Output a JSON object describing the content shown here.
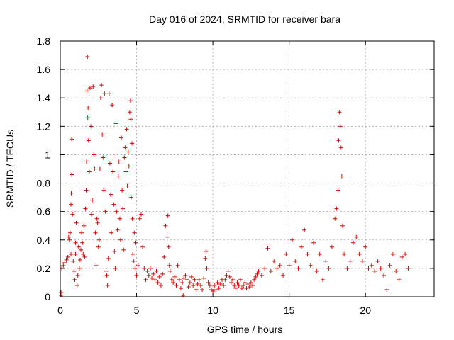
{
  "chart_data": {
    "type": "scatter",
    "title": "Day 016 of 2024, SRMTID for receiver bara",
    "xlabel": "GPS time / hours",
    "ylabel": "SRMTID / TECUs",
    "xlim": [
      0,
      24.5
    ],
    "ylim": [
      0,
      1.8
    ],
    "xticks": [
      0,
      5,
      10,
      15,
      20
    ],
    "xtick_labels": [
      "0",
      "5",
      "10",
      "15",
      "20"
    ],
    "yticks": [
      0,
      0.2,
      0.4,
      0.6,
      0.8,
      1.0,
      1.2,
      1.4,
      1.6,
      1.8
    ],
    "ytick_labels": [
      "0",
      "0.2",
      "0.4",
      "0.6",
      "0.8",
      "1",
      "1.2",
      "1.4",
      "1.6",
      "1.8"
    ],
    "grid": true,
    "marker": "+",
    "color": "#e00000",
    "series": [
      {
        "name": "SRMTID",
        "points": [
          [
            0.05,
            0.01
          ],
          [
            0.05,
            0.03
          ],
          [
            0.1,
            0.2
          ],
          [
            0.2,
            0.22
          ],
          [
            0.3,
            0.24
          ],
          [
            0.4,
            0.26
          ],
          [
            0.5,
            0.28
          ],
          [
            0.55,
            0.42
          ],
          [
            0.6,
            0.4
          ],
          [
            0.65,
            0.45
          ],
          [
            0.7,
            0.3
          ],
          [
            0.7,
            0.65
          ],
          [
            0.72,
            0.73
          ],
          [
            0.75,
            0.86
          ],
          [
            0.75,
            1.11
          ],
          [
            0.8,
            0.58
          ],
          [
            0.85,
            0.25
          ],
          [
            0.9,
            0.18
          ],
          [
            0.95,
            0.12
          ],
          [
            1.0,
            0.3
          ],
          [
            1.0,
            0.38
          ],
          [
            1.05,
            0.52
          ],
          [
            1.1,
            0.08
          ],
          [
            1.15,
            0.15
          ],
          [
            1.2,
            0.35
          ],
          [
            1.25,
            0.2
          ],
          [
            1.3,
            0.26
          ],
          [
            1.35,
            0.33
          ],
          [
            1.4,
            0.45
          ],
          [
            1.45,
            0.38
          ],
          [
            1.5,
            0.3
          ],
          [
            1.55,
            0.5
          ],
          [
            1.6,
            0.28
          ],
          [
            1.65,
            0.62
          ],
          [
            1.7,
            0.75
          ],
          [
            1.72,
            0.95
          ],
          [
            1.75,
            1.45
          ],
          [
            1.78,
            1.69
          ],
          [
            1.8,
            1.26
          ],
          [
            1.82,
            1.33
          ],
          [
            1.85,
            1.1
          ],
          [
            1.9,
            0.88
          ],
          [
            1.95,
            1.47
          ],
          [
            2.0,
            1.2
          ],
          [
            2.05,
            0.58
          ],
          [
            2.1,
            0.68
          ],
          [
            2.15,
            1.48
          ],
          [
            2.2,
            1.0
          ],
          [
            2.25,
            0.9
          ],
          [
            2.3,
            0.45
          ],
          [
            2.35,
            0.22
          ],
          [
            2.4,
            0.55
          ],
          [
            2.45,
            0.52
          ],
          [
            2.5,
            0.35
          ],
          [
            2.55,
            0.4
          ],
          [
            2.6,
            0.9
          ],
          [
            2.65,
            1.4
          ],
          [
            2.7,
            1.49
          ],
          [
            2.75,
            1.14
          ],
          [
            2.8,
            0.98
          ],
          [
            2.85,
            0.75
          ],
          [
            2.9,
            1.43
          ],
          [
            2.95,
            0.6
          ],
          [
            3.0,
            0.18
          ],
          [
            3.05,
            0.15
          ],
          [
            3.1,
            0.08
          ],
          [
            3.15,
            0.27
          ],
          [
            3.2,
            1.43
          ],
          [
            3.25,
            0.94
          ],
          [
            3.3,
            0.72
          ],
          [
            3.35,
            0.45
          ],
          [
            3.4,
            1.35
          ],
          [
            3.45,
            0.88
          ],
          [
            3.5,
            0.65
          ],
          [
            3.55,
            0.32
          ],
          [
            3.6,
            0.2
          ],
          [
            3.65,
            1.22
          ],
          [
            3.7,
            0.6
          ],
          [
            3.75,
            0.47
          ],
          [
            3.8,
            0.85
          ],
          [
            3.85,
            0.95
          ],
          [
            3.9,
            0.55
          ],
          [
            3.95,
            0.4
          ],
          [
            4.0,
            1.12
          ],
          [
            4.05,
            0.75
          ],
          [
            4.1,
            0.62
          ],
          [
            4.15,
            0.33
          ],
          [
            4.2,
            0.98
          ],
          [
            4.25,
            1.05
          ],
          [
            4.3,
            0.88
          ],
          [
            4.35,
            1.18
          ],
          [
            4.4,
            0.78
          ],
          [
            4.45,
            1.02
          ],
          [
            4.5,
            0.92
          ],
          [
            4.55,
            1.3
          ],
          [
            4.6,
            1.38
          ],
          [
            4.62,
            1.25
          ],
          [
            4.65,
            0.7
          ],
          [
            4.7,
            1.08
          ],
          [
            4.72,
            0.55
          ],
          [
            4.75,
            0.3
          ],
          [
            4.8,
            0.25
          ],
          [
            4.85,
            0.45
          ],
          [
            4.9,
            0.2
          ],
          [
            4.95,
            0.38
          ],
          [
            5.0,
            0.15
          ],
          [
            5.1,
            0.22
          ],
          [
            5.2,
            0.55
          ],
          [
            5.3,
            0.58
          ],
          [
            5.4,
            0.35
          ],
          [
            5.5,
            0.2
          ],
          [
            5.6,
            0.12
          ],
          [
            5.7,
            0.18
          ],
          [
            5.8,
            0.15
          ],
          [
            5.9,
            0.2
          ],
          [
            6.0,
            0.13
          ],
          [
            6.1,
            0.16
          ],
          [
            6.2,
            0.12
          ],
          [
            6.3,
            0.18
          ],
          [
            6.4,
            0.1
          ],
          [
            6.5,
            0.14
          ],
          [
            6.6,
            0.08
          ],
          [
            6.7,
            0.16
          ],
          [
            6.8,
            0.28
          ],
          [
            6.9,
            0.5
          ],
          [
            7.0,
            0.42
          ],
          [
            7.05,
            0.57
          ],
          [
            7.1,
            0.35
          ],
          [
            7.15,
            0.22
          ],
          [
            7.2,
            0.18
          ],
          [
            7.3,
            0.12
          ],
          [
            7.4,
            0.1
          ],
          [
            7.5,
            0.14
          ],
          [
            7.6,
            0.08
          ],
          [
            7.7,
            0.22
          ],
          [
            7.8,
            0.12
          ],
          [
            7.9,
            0.06
          ],
          [
            8.0,
            0.1
          ],
          [
            8.05,
            0.01
          ],
          [
            8.1,
            0.13
          ],
          [
            8.2,
            0.15
          ],
          [
            8.3,
            0.12
          ],
          [
            8.4,
            0.07
          ],
          [
            8.5,
            0.1
          ],
          [
            8.6,
            0.14
          ],
          [
            8.7,
            0.08
          ],
          [
            8.8,
            0.12
          ],
          [
            8.9,
            0.05
          ],
          [
            9.0,
            0.09
          ],
          [
            9.1,
            0.12
          ],
          [
            9.2,
            0.08
          ],
          [
            9.3,
            0.05
          ],
          [
            9.4,
            0.13
          ],
          [
            9.5,
            0.27
          ],
          [
            9.55,
            0.32
          ],
          [
            9.6,
            0.2
          ],
          [
            9.7,
            0.1
          ],
          [
            9.8,
            0.08
          ],
          [
            9.9,
            0.05
          ],
          [
            10.0,
            0.04
          ],
          [
            10.1,
            0.08
          ],
          [
            10.2,
            0.05
          ],
          [
            10.3,
            0.1
          ],
          [
            10.4,
            0.06
          ],
          [
            10.5,
            0.09
          ],
          [
            10.6,
            0.12
          ],
          [
            10.7,
            0.08
          ],
          [
            10.8,
            0.12
          ],
          [
            10.9,
            0.15
          ],
          [
            11.0,
            0.18
          ],
          [
            11.1,
            0.14
          ],
          [
            11.2,
            0.1
          ],
          [
            11.3,
            0.12
          ],
          [
            11.4,
            0.08
          ],
          [
            11.5,
            0.06
          ],
          [
            11.6,
            0.1
          ],
          [
            11.7,
            0.08
          ],
          [
            11.8,
            0.12
          ],
          [
            11.9,
            0.06
          ],
          [
            12.0,
            0.08
          ],
          [
            12.1,
            0.1
          ],
          [
            12.2,
            0.06
          ],
          [
            12.3,
            0.09
          ],
          [
            12.4,
            0.07
          ],
          [
            12.5,
            0.1
          ],
          [
            12.6,
            0.08
          ],
          [
            12.7,
            0.12
          ],
          [
            12.8,
            0.14
          ],
          [
            12.9,
            0.16
          ],
          [
            13.0,
            0.18
          ],
          [
            13.2,
            0.15
          ],
          [
            13.4,
            0.2
          ],
          [
            13.6,
            0.34
          ],
          [
            13.8,
            0.18
          ],
          [
            14.0,
            0.25
          ],
          [
            14.2,
            0.2
          ],
          [
            14.4,
            0.22
          ],
          [
            14.6,
            0.15
          ],
          [
            14.8,
            0.3
          ],
          [
            15.0,
            0.22
          ],
          [
            15.2,
            0.4
          ],
          [
            15.4,
            0.25
          ],
          [
            15.6,
            0.2
          ],
          [
            15.8,
            0.35
          ],
          [
            16.0,
            0.47
          ],
          [
            16.2,
            0.3
          ],
          [
            16.4,
            0.22
          ],
          [
            16.6,
            0.38
          ],
          [
            16.8,
            0.18
          ],
          [
            17.0,
            0.3
          ],
          [
            17.2,
            0.12
          ],
          [
            17.4,
            0.25
          ],
          [
            17.6,
            0.2
          ],
          [
            17.8,
            0.35
          ],
          [
            18.0,
            0.55
          ],
          [
            18.1,
            0.62
          ],
          [
            18.2,
            0.75
          ],
          [
            18.25,
            1.1
          ],
          [
            18.3,
            1.3
          ],
          [
            18.35,
            1.2
          ],
          [
            18.4,
            1.05
          ],
          [
            18.45,
            0.85
          ],
          [
            18.5,
            0.5
          ],
          [
            18.6,
            0.3
          ],
          [
            18.8,
            0.2
          ],
          [
            19.0,
            0.25
          ],
          [
            19.2,
            0.38
          ],
          [
            19.4,
            0.42
          ],
          [
            19.6,
            0.3
          ],
          [
            19.8,
            0.25
          ],
          [
            20.0,
            0.35
          ],
          [
            20.2,
            0.2
          ],
          [
            20.4,
            0.22
          ],
          [
            20.6,
            0.18
          ],
          [
            20.8,
            0.25
          ],
          [
            21.0,
            0.2
          ],
          [
            21.2,
            0.15
          ],
          [
            21.4,
            0.05
          ],
          [
            21.6,
            0.22
          ],
          [
            21.8,
            0.3
          ],
          [
            22.0,
            0.18
          ],
          [
            22.2,
            0.12
          ],
          [
            22.4,
            0.28
          ],
          [
            22.6,
            0.3
          ],
          [
            22.8,
            0.2
          ]
        ]
      }
    ]
  }
}
